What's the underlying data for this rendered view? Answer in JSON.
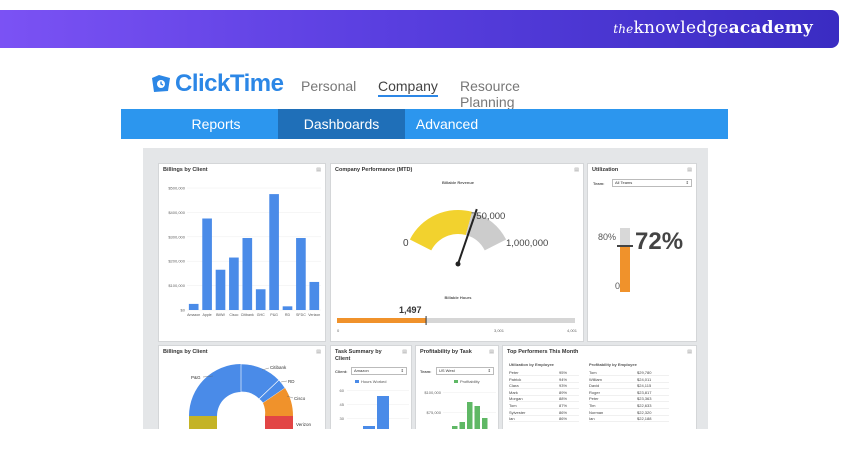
{
  "banner": {
    "brand_prefix": "the",
    "brand_main": "knowledge",
    "brand_bold": "academy"
  },
  "app": {
    "logo": "ClickTime",
    "top_tabs": [
      "Personal",
      "Company",
      "Resource Planning"
    ],
    "active_top_tab": "Company"
  },
  "nav": {
    "items": [
      "Reports",
      "Dashboards",
      "Advanced"
    ],
    "active": "Dashboards"
  },
  "panels": {
    "billings": {
      "title": "Billings by Client"
    },
    "performance": {
      "title": "Company Performance (MTD)",
      "billable_revenue_label": "Billable Revenue",
      "billable_hours_label": "Billable Hours",
      "hours_value": "1,497"
    },
    "utilization": {
      "title": "Utilization",
      "team_label": "Team:",
      "team_value": "All Teams",
      "percent": "72%",
      "bar_label": "80%",
      "bar_zero": "0"
    },
    "billings_pie": {
      "title": "Billings by Client"
    },
    "task_summary": {
      "title": "Task Summary by Client",
      "client_label": "Client:",
      "client_value": "Amazon",
      "legend": "Hours Worked"
    },
    "profitability": {
      "title": "Profitability by Task",
      "team_label": "Team:",
      "team_value": "US West",
      "legend": "Profitability"
    },
    "top_performers": {
      "title": "Top Performers This Month",
      "left_header": "Utilization by Employee",
      "right_header": "Profitability by Employee",
      "left_rows": [
        [
          "Peter",
          "95%"
        ],
        [
          "Patrick",
          "94%"
        ],
        [
          "Clara",
          "93%"
        ],
        [
          "Mark",
          "89%"
        ],
        [
          "Morgan",
          "88%"
        ],
        [
          "Tom",
          "87%"
        ],
        [
          "Sylvester",
          "86%"
        ],
        [
          "Ian",
          "86%"
        ]
      ],
      "right_rows": [
        [
          "Tom",
          "$29,780"
        ],
        [
          "William",
          "$24,011"
        ],
        [
          "David",
          "$24,115"
        ],
        [
          "Roger",
          "$23,817"
        ],
        [
          "Peter",
          "$23,363"
        ],
        [
          "Tim",
          "$22,633"
        ],
        [
          "Norman",
          "$22,320"
        ],
        [
          "Ian",
          "$22,188"
        ]
      ]
    }
  },
  "chart_data": [
    {
      "type": "bar",
      "title": "Billings by Client",
      "categories": [
        "Amazon",
        "Apple",
        "BMW",
        "Cisco",
        "Citibank",
        "GHC",
        "P&G",
        "RD",
        "SFDC",
        "Verizon"
      ],
      "values": [
        25000,
        375000,
        165000,
        215000,
        295000,
        85000,
        475000,
        15000,
        295000,
        115000
      ],
      "ylim": [
        0,
        500000
      ],
      "yticks": [
        "$0",
        "$100,000",
        "$200,000",
        "$300,000",
        "$400,000",
        "$500,000"
      ],
      "color": "#4a8be8"
    },
    {
      "type": "gauge",
      "title": "Billable Revenue",
      "min_label": "0",
      "mid_label": "750,000",
      "max_label": "1,000,000",
      "value_fraction": 0.65,
      "colors": [
        "#f2d22e",
        "#cccccc"
      ]
    },
    {
      "type": "progress",
      "title": "Billable Hours",
      "value": 1497,
      "max": 4000,
      "ticks": [
        "0",
        "3,001",
        "4,001"
      ],
      "color": "#f0922b"
    },
    {
      "type": "donut",
      "title": "Billings by Client",
      "labels": [
        "Citibank",
        "RD",
        "Cisco",
        "P&G",
        "Verizon"
      ],
      "colors": [
        "#4a8be8",
        "#4a8be8",
        "#f0922b",
        "#4a8be8",
        "#e24545"
      ]
    },
    {
      "type": "bar",
      "title": "Task Summary by Client",
      "series_name": "Hours Worked",
      "yticks": [
        "60",
        "45",
        "30",
        "15"
      ],
      "values": [
        12,
        42
      ],
      "color": "#4a8be8"
    },
    {
      "type": "bar",
      "title": "Profitability by Task",
      "series_name": "Profitability",
      "yticks": [
        "$100,000",
        "$75,000"
      ],
      "values": [
        15,
        20,
        45,
        40,
        25
      ],
      "color": "#5fb865"
    }
  ]
}
